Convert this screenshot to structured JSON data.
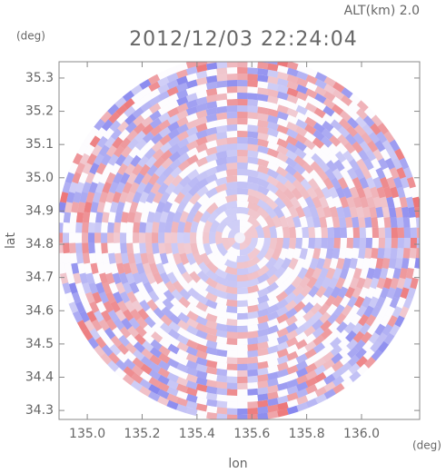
{
  "chart_data": {
    "type": "radar-image",
    "title": "2012/12/03 22:24:04",
    "annotation": "ALT(km) 2.0",
    "ylabel": "lat",
    "yunit": "(deg)",
    "xlabel": "lon",
    "xunit": "(deg)",
    "xlim": [
      134.897,
      136.212
    ],
    "xticks": [
      {
        "value": 135,
        "label": "135.0"
      },
      135.2,
      135.4,
      135.6,
      135.8,
      {
        "value": 136,
        "label": "136.0"
      }
    ],
    "ylim": [
      34.273,
      35.349
    ],
    "yticks": [
      34.3,
      34.4,
      34.5,
      34.6,
      34.7,
      34.8,
      34.9,
      {
        "value": 35,
        "label": "35.0"
      },
      35.1,
      35.2,
      35.3
    ]
  }
}
